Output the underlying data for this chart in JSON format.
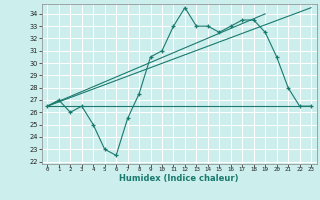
{
  "xlabel": "Humidex (Indice chaleur)",
  "bg_color": "#cceeed",
  "grid_color": "#ffffff",
  "line_color": "#1a7a6e",
  "xlim": [
    -0.5,
    23.5
  ],
  "ylim": [
    21.8,
    34.8
  ],
  "yticks": [
    22,
    23,
    24,
    25,
    26,
    27,
    28,
    29,
    30,
    31,
    32,
    33,
    34
  ],
  "xticks": [
    0,
    1,
    2,
    3,
    4,
    5,
    6,
    7,
    8,
    9,
    10,
    11,
    12,
    13,
    14,
    15,
    16,
    17,
    18,
    19,
    20,
    21,
    22,
    23
  ],
  "main_line_x": [
    0,
    1,
    2,
    3,
    4,
    5,
    6,
    7,
    8,
    9,
    10,
    11,
    12,
    13,
    14,
    15,
    16,
    17,
    18,
    19,
    20,
    21,
    22,
    23
  ],
  "main_line_y": [
    26.5,
    27.0,
    26.0,
    26.5,
    25.0,
    23.0,
    22.5,
    25.5,
    27.5,
    30.5,
    31.0,
    33.0,
    34.5,
    33.0,
    33.0,
    32.5,
    33.0,
    33.5,
    33.5,
    32.5,
    30.5,
    28.0,
    26.5,
    26.5
  ],
  "trend_line1_x": [
    0,
    23
  ],
  "trend_line1_y": [
    26.5,
    26.5
  ],
  "trend_line2_x": [
    0,
    19
  ],
  "trend_line2_y": [
    26.5,
    34.0
  ],
  "trend_line3_x": [
    0,
    23
  ],
  "trend_line3_y": [
    26.5,
    34.5
  ]
}
